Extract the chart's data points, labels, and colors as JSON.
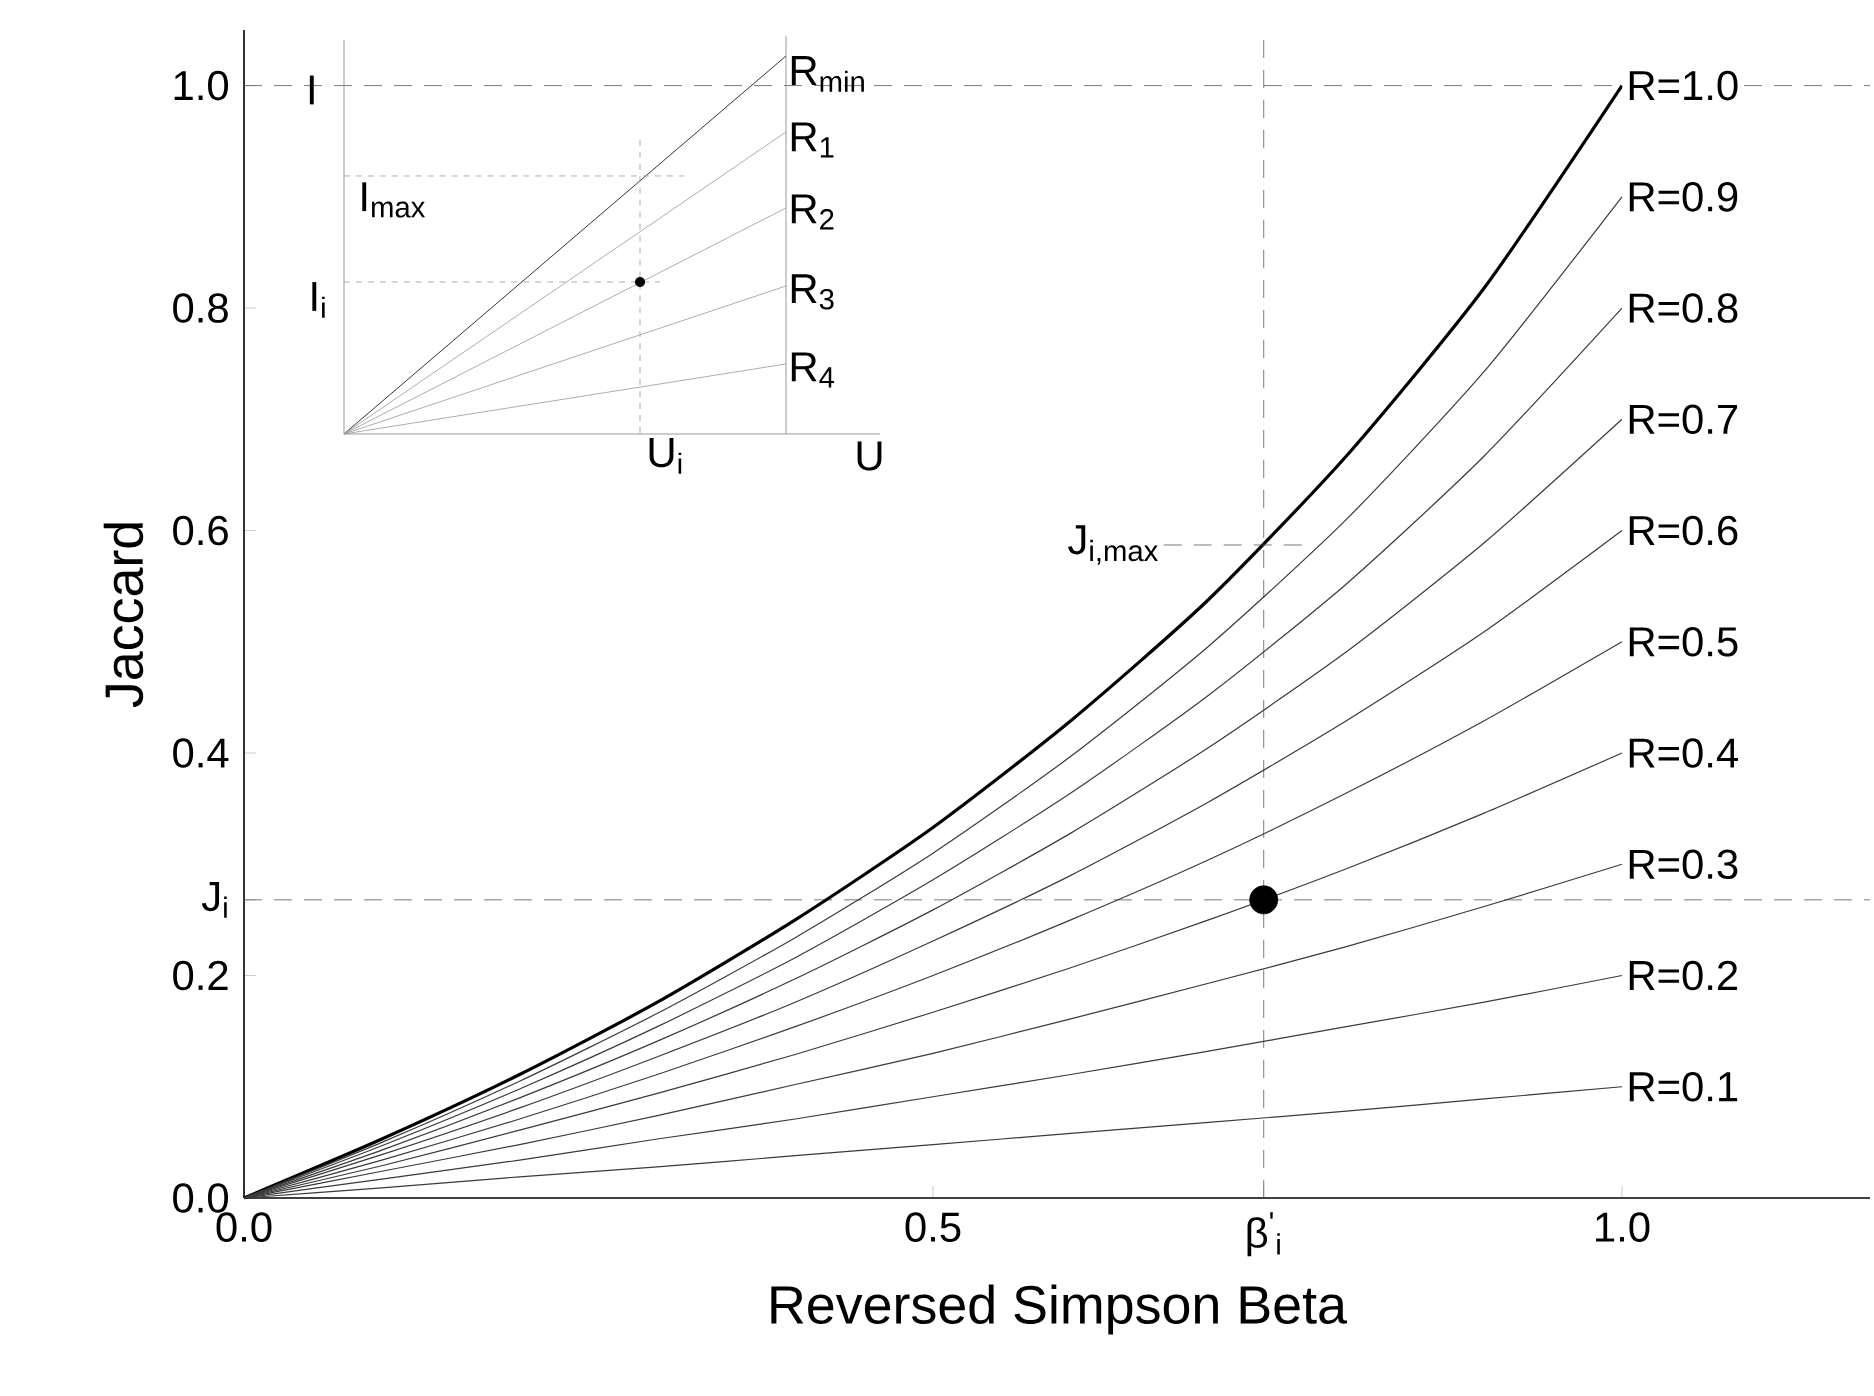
{
  "chart_data": {
    "type": "line",
    "xlabel": "Reversed Simpson Beta",
    "ylabel": "Jaccard",
    "x": [
      0,
      0.1,
      0.2,
      0.3,
      0.4,
      0.5,
      0.6,
      0.7,
      0.8,
      0.9,
      1.0
    ],
    "xlim": [
      0,
      1.18
    ],
    "ylim": [
      0,
      1.05
    ],
    "xticks": [
      {
        "value": 0,
        "label": "0.0"
      },
      {
        "value": 0.5,
        "label": "0.5"
      },
      {
        "value": 0.74,
        "label": "β$^{'}$$_{i}$"
      },
      {
        "value": 1.0,
        "label": "1.0"
      }
    ],
    "yticks": [
      {
        "value": 0,
        "label": "0.0"
      },
      {
        "value": 0.2,
        "label": "0.2"
      },
      {
        "value": 0.268,
        "label": "J$_{i}$"
      },
      {
        "value": 0.4,
        "label": "0.4"
      },
      {
        "value": 0.6,
        "label": "0.6"
      },
      {
        "value": 0.8,
        "label": "0.8"
      },
      {
        "value": 1.0,
        "label": "1.0"
      }
    ],
    "grid": false,
    "line_style": "solid",
    "series": [
      {
        "name": "R=1.0",
        "color": "#000000",
        "values": [
          0,
          0.053,
          0.111,
          0.176,
          0.25,
          0.333,
          0.429,
          0.538,
          0.667,
          0.818,
          1.0
        ]
      },
      {
        "name": "R=0.9",
        "color": "#3a3a3a",
        "values": [
          0,
          0.05,
          0.105,
          0.166,
          0.234,
          0.31,
          0.397,
          0.496,
          0.61,
          0.743,
          0.9
        ]
      },
      {
        "name": "R=0.8",
        "color": "#3a3a3a",
        "values": [
          0,
          0.047,
          0.098,
          0.154,
          0.216,
          0.286,
          0.364,
          0.452,
          0.552,
          0.667,
          0.8
        ]
      },
      {
        "name": "R=0.7",
        "color": "#3a3a3a",
        "values": [
          0,
          0.043,
          0.09,
          0.141,
          0.197,
          0.259,
          0.328,
          0.405,
          0.491,
          0.589,
          0.7
        ]
      },
      {
        "name": "R=0.6",
        "color": "#3a3a3a",
        "values": [
          0,
          0.039,
          0.081,
          0.127,
          0.176,
          0.231,
          0.29,
          0.356,
          0.429,
          0.509,
          0.6
        ]
      },
      {
        "name": "R=0.5",
        "color": "#3a3a3a",
        "values": [
          0,
          0.034,
          0.071,
          0.111,
          0.154,
          0.2,
          0.25,
          0.304,
          0.364,
          0.429,
          0.5
        ]
      },
      {
        "name": "R=0.4",
        "color": "#3a3a3a",
        "values": [
          0,
          0.029,
          0.061,
          0.094,
          0.129,
          0.167,
          0.207,
          0.25,
          0.296,
          0.346,
          0.4
        ]
      },
      {
        "name": "R=0.3",
        "color": "#3a3a3a",
        "values": [
          0,
          0.024,
          0.048,
          0.074,
          0.102,
          0.13,
          0.161,
          0.193,
          0.226,
          0.262,
          0.3
        ]
      },
      {
        "name": "R=0.2",
        "color": "#3a3a3a",
        "values": [
          0,
          0.017,
          0.034,
          0.053,
          0.071,
          0.091,
          0.111,
          0.132,
          0.154,
          0.176,
          0.2
        ]
      },
      {
        "name": "R=0.1",
        "color": "#3a3a3a",
        "values": [
          0,
          0.009,
          0.019,
          0.028,
          0.038,
          0.048,
          0.058,
          0.068,
          0.078,
          0.089,
          0.1
        ]
      },
      {
        "type": "scatter",
        "marker": "circle",
        "color": "#000000",
        "x": [
          0.74
        ],
        "values": [
          0.268
        ]
      }
    ],
    "ref_lines": [
      {
        "axis": "y",
        "value": 1.0,
        "line_style": "dashed"
      },
      {
        "axis": "y",
        "value": 0.268,
        "line_style": "dashed"
      },
      {
        "axis": "x",
        "value": 0.74,
        "line_style": "dashed"
      }
    ],
    "annotations": [
      "I",
      "I$_{max}$",
      "I$_{i}$",
      "R$_{min}$",
      "R$_{1}$",
      "R$_{2}$",
      "R$_{3}$",
      "R$_{4}$",
      "U$_{i}$",
      "U",
      {
        "text": "J$_{i,max}$",
        "x": 0.74,
        "y": 0.587
      }
    ]
  }
}
